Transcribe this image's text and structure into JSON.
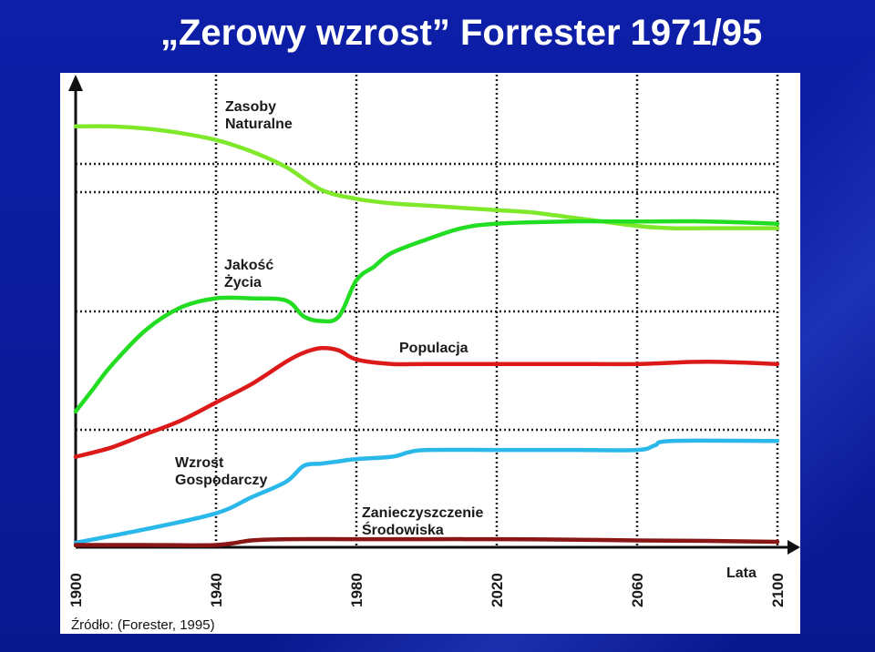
{
  "slide": {
    "title": "„Zerowy wzrost” Forrester 1971/95"
  },
  "chart_data": {
    "type": "line",
    "title": "",
    "xlabel": "Lata",
    "ylabel": "",
    "x_ticks": [
      "1900",
      "1940",
      "1980",
      "2020",
      "2060",
      "2100"
    ],
    "xlim": [
      1900,
      2100
    ],
    "ylim": [
      0,
      100
    ],
    "grid": "dotted",
    "legend": "inline labels",
    "source": "Źródło: (Forester, 1995)",
    "series": [
      {
        "name": "Zasoby Naturalne",
        "label_lines": [
          "Zasoby",
          "Naturalne"
        ],
        "color": "#7fe82a",
        "x": [
          1900,
          1910,
          1920,
          1930,
          1940,
          1950,
          1960,
          1970,
          1980,
          1990,
          2000,
          2010,
          2020,
          2030,
          2040,
          2050,
          2060,
          2070,
          2080,
          2090,
          2100
        ],
        "y": [
          93,
          93,
          92.5,
          91.5,
          90,
          87.5,
          84,
          79,
          77,
          76,
          75.5,
          75,
          74.5,
          74,
          73,
          72,
          71,
          70.5,
          70.5,
          70.5,
          70.5
        ]
      },
      {
        "name": "Jakość Życia",
        "label_lines": [
          "Jakość",
          "Życia"
        ],
        "color": "#22dd22",
        "x": [
          1900,
          1905,
          1910,
          1920,
          1930,
          1940,
          1950,
          1960,
          1965,
          1970,
          1975,
          1980,
          1985,
          1990,
          2000,
          2010,
          2020,
          2040,
          2060,
          2080,
          2100
        ],
        "y": [
          30,
          35,
          40,
          48,
          53,
          55,
          55,
          54.5,
          51,
          50,
          51,
          59,
          62,
          65,
          68,
          70.5,
          71.5,
          72,
          72,
          72,
          71.5
        ]
      },
      {
        "name": "Populacja",
        "label_lines": [
          "Populacja"
        ],
        "color": "#dd1a1a",
        "x": [
          1900,
          1910,
          1920,
          1930,
          1940,
          1950,
          1960,
          1965,
          1970,
          1975,
          1980,
          1990,
          2000,
          2020,
          2040,
          2060,
          2080,
          2100
        ],
        "y": [
          20,
          22,
          25,
          28,
          32,
          36,
          41,
          43,
          44,
          43.5,
          41.5,
          40.5,
          40.5,
          40.5,
          40.5,
          40.5,
          41,
          40.5
        ]
      },
      {
        "name": "Wzrost Gospodarczy",
        "label_lines": [
          "Wzrost",
          "Gospodarczy"
        ],
        "color": "#2ab8ea",
        "x": [
          1900,
          1920,
          1940,
          1950,
          1960,
          1965,
          1970,
          1975,
          1980,
          1990,
          1995,
          2000,
          2020,
          2040,
          2060,
          2065,
          2070,
          2100
        ],
        "y": [
          1,
          4,
          7.5,
          11,
          14.5,
          18,
          18.5,
          19,
          19.5,
          20,
          21,
          21.5,
          21.5,
          21.5,
          21.5,
          22.5,
          23.5,
          23.5
        ]
      },
      {
        "name": "Zanieczyszczenie Środowiska",
        "label_lines": [
          "Zanieczyszczenie",
          "Środowiska"
        ],
        "color": "#8b1616",
        "x": [
          1900,
          1920,
          1940,
          1950,
          1960,
          1980,
          2000,
          2020,
          2040,
          2060,
          2080,
          2100
        ],
        "y": [
          0.5,
          0.5,
          0.5,
          1.5,
          1.8,
          1.8,
          1.8,
          1.8,
          1.7,
          1.5,
          1.4,
          1.2
        ]
      }
    ]
  }
}
